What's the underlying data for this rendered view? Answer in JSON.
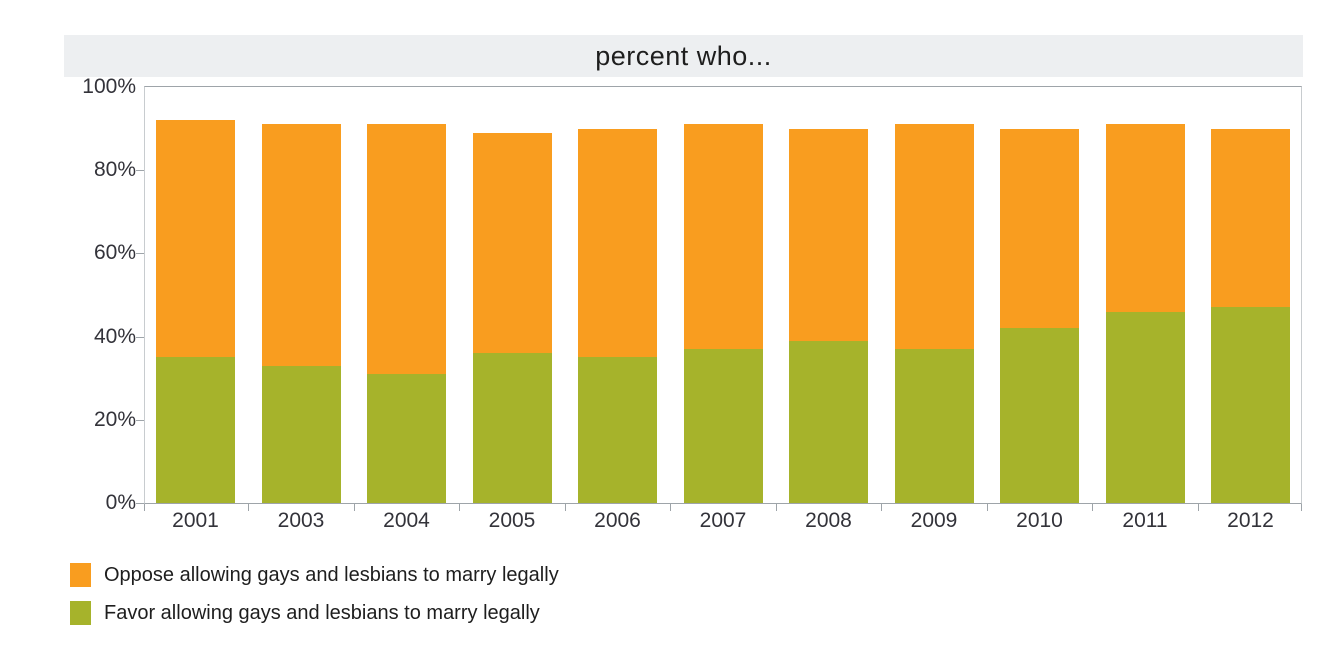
{
  "chart": {
    "title": "percent who..."
  },
  "chart_data": {
    "type": "bar",
    "stacked": true,
    "title": "percent who...",
    "categories": [
      "2001",
      "2003",
      "2004",
      "2005",
      "2006",
      "2007",
      "2008",
      "2009",
      "2010",
      "2011",
      "2012"
    ],
    "series": [
      {
        "name": "Favor allowing gays and lesbians to marry legally",
        "color": "#a6b32b",
        "values": [
          35,
          33,
          31,
          36,
          35,
          37,
          39,
          37,
          42,
          46,
          47
        ]
      },
      {
        "name": "Oppose allowing gays and lesbians to marry legally",
        "color": "#f99d1f",
        "values": [
          57,
          58,
          60,
          53,
          55,
          54,
          51,
          54,
          48,
          45,
          43
        ]
      }
    ],
    "stack_totals": [
      92,
      91,
      91,
      89,
      90,
      91,
      90,
      91,
      90,
      91,
      90
    ],
    "xlabel": "",
    "ylabel": "",
    "ylim": [
      0,
      100
    ],
    "y_tick_labels": [
      "100%",
      "80%",
      "60%",
      "40%",
      "20%",
      "0%"
    ],
    "y_tick_values": [
      100,
      80,
      60,
      40,
      20,
      0
    ],
    "grid": false,
    "legend_position": "bottom-left",
    "legend_order": [
      1,
      0
    ]
  },
  "colors": {
    "title_band_bg": "#edeff1",
    "axis_border": "#9ea4a9",
    "side_border": "#c8cccf",
    "axis_text": "#33333a",
    "oppose": "#f99d1f",
    "favor": "#a6b32b"
  }
}
